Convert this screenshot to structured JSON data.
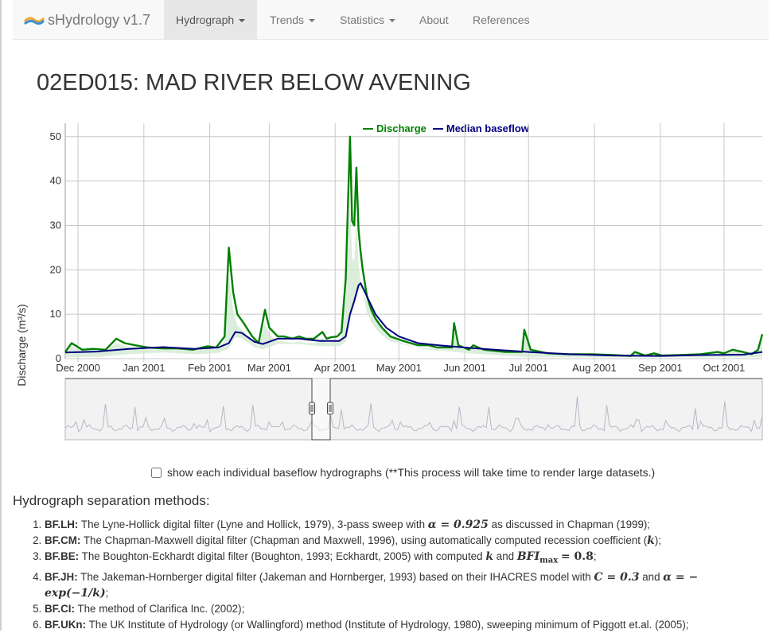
{
  "navbar": {
    "brand": "sHydrology v1.7",
    "items": [
      {
        "label": "Hydrograph",
        "dropdown": true,
        "active": true
      },
      {
        "label": "Trends",
        "dropdown": true,
        "active": false
      },
      {
        "label": "Statistics",
        "dropdown": true,
        "active": false
      },
      {
        "label": "About",
        "dropdown": false,
        "active": false
      },
      {
        "label": "References",
        "dropdown": false,
        "active": false
      }
    ]
  },
  "page_title": "02ED015: MAD RIVER BELOW AVENING",
  "chart_data": {
    "type": "line",
    "title": "",
    "ylabel": "Discharge (m³/s)",
    "xlabel": "",
    "ylim": [
      0,
      53
    ],
    "yticks": [
      "0",
      "10",
      "20",
      "30",
      "40",
      "50"
    ],
    "xtick_labels": [
      "Dec 2000",
      "Jan 2001",
      "Feb 2001",
      "Mar 2001",
      "Apr 2001",
      "May 2001",
      "Jun 2001",
      "Jul 2001",
      "Aug 2001",
      "Sep 2001",
      "Oct 2001"
    ],
    "grid": true,
    "legend_position": "top",
    "series": [
      {
        "name": "Discharge",
        "color": "#008000",
        "x": [
          "2000-11-25",
          "2000-11-28",
          "2000-12-03",
          "2000-12-08",
          "2000-12-14",
          "2000-12-19",
          "2000-12-23",
          "2000-12-28",
          "2001-01-03",
          "2001-01-10",
          "2001-01-17",
          "2001-01-24",
          "2001-01-31",
          "2001-02-04",
          "2001-02-08",
          "2001-02-10",
          "2001-02-12",
          "2001-02-14",
          "2001-02-17",
          "2001-02-21",
          "2001-02-24",
          "2001-02-27",
          "2001-03-01",
          "2001-03-03",
          "2001-03-05",
          "2001-03-08",
          "2001-03-12",
          "2001-03-15",
          "2001-03-18",
          "2001-03-22",
          "2001-03-26",
          "2001-03-28",
          "2001-03-30",
          "2001-04-02",
          "2001-04-04",
          "2001-04-06",
          "2001-04-08",
          "2001-04-09",
          "2001-04-10",
          "2001-04-11",
          "2001-04-12",
          "2001-04-13",
          "2001-04-14",
          "2001-04-16",
          "2001-04-18",
          "2001-04-20",
          "2001-04-23",
          "2001-04-27",
          "2001-05-03",
          "2001-05-10",
          "2001-05-15",
          "2001-05-19",
          "2001-05-23",
          "2001-05-26",
          "2001-05-27",
          "2001-05-29",
          "2001-06-03",
          "2001-06-05",
          "2001-06-10",
          "2001-06-20",
          "2001-06-28",
          "2001-06-29",
          "2001-07-02",
          "2001-07-10",
          "2001-07-20",
          "2001-07-31",
          "2001-08-10",
          "2001-08-18",
          "2001-08-20",
          "2001-08-25",
          "2001-08-29",
          "2001-09-02",
          "2001-09-10",
          "2001-09-20",
          "2001-09-28",
          "2001-10-01",
          "2001-10-05",
          "2001-10-10",
          "2001-10-14",
          "2001-10-17",
          "2001-10-19"
        ],
        "values": [
          1.5,
          3.5,
          2,
          2.2,
          2,
          4.5,
          3.5,
          3,
          2.5,
          2.3,
          2.3,
          2,
          2.8,
          2.5,
          5,
          25,
          15,
          10,
          8,
          5,
          3.5,
          11,
          7,
          6,
          5,
          5,
          4.5,
          5,
          4.5,
          4.5,
          6,
          4.5,
          4.8,
          5,
          6,
          18,
          50,
          31,
          30,
          43,
          29,
          24,
          20,
          14,
          11,
          9,
          7,
          5,
          4,
          3,
          3,
          2.5,
          2.5,
          2.5,
          8,
          3,
          2,
          3,
          2,
          1.5,
          1.5,
          6.5,
          2,
          1.2,
          1,
          1,
          0.8,
          0.6,
          1.5,
          0.7,
          1.2,
          0.7,
          0.8,
          1,
          1.5,
          1.2,
          2,
          1.5,
          1,
          2,
          5.5
        ]
      },
      {
        "name": "Median baseflow",
        "color": "#000080",
        "x": [
          "2000-11-25",
          "2000-12-10",
          "2000-12-25",
          "2001-01-10",
          "2001-01-25",
          "2001-02-05",
          "2001-02-10",
          "2001-02-13",
          "2001-02-16",
          "2001-02-22",
          "2001-02-26",
          "2001-03-05",
          "2001-03-15",
          "2001-03-25",
          "2001-04-03",
          "2001-04-06",
          "2001-04-08",
          "2001-04-10",
          "2001-04-12",
          "2001-04-13",
          "2001-04-16",
          "2001-04-20",
          "2001-04-25",
          "2001-05-01",
          "2001-05-10",
          "2001-05-20",
          "2001-06-01",
          "2001-06-15",
          "2001-07-01",
          "2001-07-20",
          "2001-08-10",
          "2001-09-01",
          "2001-09-20",
          "2001-10-10",
          "2001-10-19"
        ],
        "values": [
          1.4,
          1.6,
          2.2,
          2.6,
          2.2,
          2.5,
          3.5,
          6,
          5.8,
          3.8,
          3.3,
          4.5,
          4.5,
          4,
          4,
          5,
          10,
          13,
          16.5,
          17,
          14,
          10,
          7,
          5,
          3.5,
          3,
          2.5,
          2,
          1.5,
          1,
          0.7,
          0.6,
          0.8,
          0.9,
          1.5
        ]
      }
    ]
  },
  "navigator": {
    "label": "range navigator"
  },
  "checkbox": {
    "label": "show each individual baseflow hydrographs (**This process will take time to render large datasets.)",
    "checked": false
  },
  "methods": {
    "title": "Hydrograph separation methods:",
    "items": [
      {
        "code": "BF.LH:",
        "text1": "The Lyne-Hollick digital filter (Lyne and Hollick, 1979), 3-pass sweep with",
        "math1": "α = 0.925",
        "text2": "as discussed in Chapman (1999);"
      },
      {
        "code": "BF.CM:",
        "text1": "The Chapman-Maxwell digital filter (Chapman and Maxwell, 1996), using automatically computed recession coefficient (",
        "math1": "k",
        "text2": ");"
      },
      {
        "code": "BF.BE:",
        "text1": "The Boughton-Eckhardt digital filter (Boughton, 1993; Eckhardt, 2005) with computed",
        "math1": "k",
        "text_and": "and",
        "math2": "BFI",
        "math2_sub": "max",
        "math2_rest": "= 0.8",
        "text2": ";"
      },
      {
        "code": "BF.JH:",
        "text1": "The Jakeman-Hornberger digital filter (Jakeman and Hornberger, 1993) based on their IHACRES model with",
        "math1": "C = 0.3",
        "text_and": "and",
        "math2": "α = − exp(−1/k)",
        "text2": ";"
      },
      {
        "code": "BF.CI:",
        "text1": "The method of Clarifica Inc. (2002);"
      },
      {
        "code": "BF.UKn:",
        "text1": "The UK Institute of Hydrology (or Wallingford) method (Institute of Hydrology, 1980), sweeping minimum of Piggott et.al. (2005);"
      }
    ]
  }
}
